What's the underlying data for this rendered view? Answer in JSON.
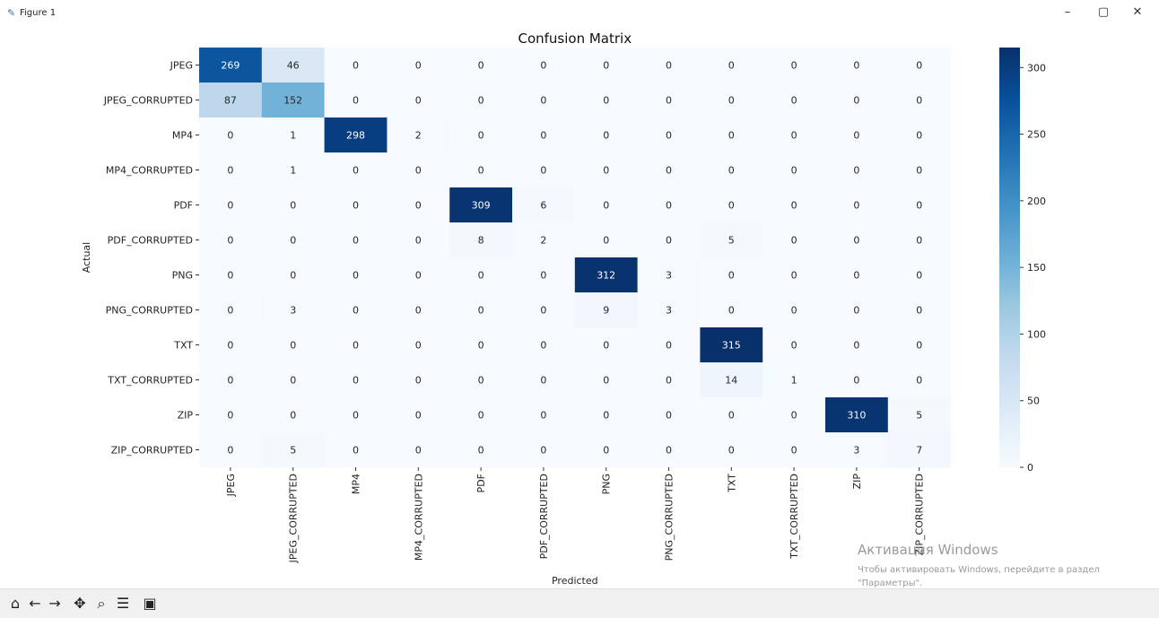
{
  "window": {
    "title": "Figure 1",
    "buttons": {
      "minimize": "–",
      "restore": "▢",
      "close": "✕"
    }
  },
  "toolbar": {
    "tools": [
      "home-icon",
      "back-icon",
      "forward-icon",
      "pan-icon",
      "zoom-icon",
      "configure-subplots-icon",
      "save-icon"
    ]
  },
  "watermark": {
    "line1": "Активация Windows",
    "line2": "Чтобы активировать Windows, перейдите в раздел",
    "line3": "\"Параметры\"."
  },
  "chart_data": {
    "type": "heatmap",
    "title": "Confusion Matrix",
    "xlabel": "Predicted",
    "ylabel": "Actual",
    "labels": [
      "JPEG",
      "JPEG_CORRUPTED",
      "MP4",
      "MP4_CORRUPTED",
      "PDF",
      "PDF_CORRUPTED",
      "PNG",
      "PNG_CORRUPTED",
      "TXT",
      "TXT_CORRUPTED",
      "ZIP",
      "ZIP_CORRUPTED"
    ],
    "matrix": [
      [
        269,
        46,
        0,
        0,
        0,
        0,
        0,
        0,
        0,
        0,
        0,
        0
      ],
      [
        87,
        152,
        0,
        0,
        0,
        0,
        0,
        0,
        0,
        0,
        0,
        0
      ],
      [
        0,
        1,
        298,
        2,
        0,
        0,
        0,
        0,
        0,
        0,
        0,
        0
      ],
      [
        0,
        1,
        0,
        0,
        0,
        0,
        0,
        0,
        0,
        0,
        0,
        0
      ],
      [
        0,
        0,
        0,
        0,
        309,
        6,
        0,
        0,
        0,
        0,
        0,
        0
      ],
      [
        0,
        0,
        0,
        0,
        8,
        2,
        0,
        0,
        5,
        0,
        0,
        0
      ],
      [
        0,
        0,
        0,
        0,
        0,
        0,
        312,
        3,
        0,
        0,
        0,
        0
      ],
      [
        0,
        3,
        0,
        0,
        0,
        0,
        9,
        3,
        0,
        0,
        0,
        0
      ],
      [
        0,
        0,
        0,
        0,
        0,
        0,
        0,
        0,
        315,
        0,
        0,
        0
      ],
      [
        0,
        0,
        0,
        0,
        0,
        0,
        0,
        0,
        14,
        1,
        0,
        0
      ],
      [
        0,
        0,
        0,
        0,
        0,
        0,
        0,
        0,
        0,
        0,
        310,
        5
      ],
      [
        0,
        5,
        0,
        0,
        0,
        0,
        0,
        0,
        0,
        0,
        3,
        7
      ]
    ],
    "colormap": "Blues",
    "color_low": "#f7fbff",
    "color_high": "#08306b",
    "vmin": 0,
    "vmax": 315,
    "colorbar_ticks": [
      0,
      50,
      100,
      150,
      200,
      250,
      300
    ]
  }
}
